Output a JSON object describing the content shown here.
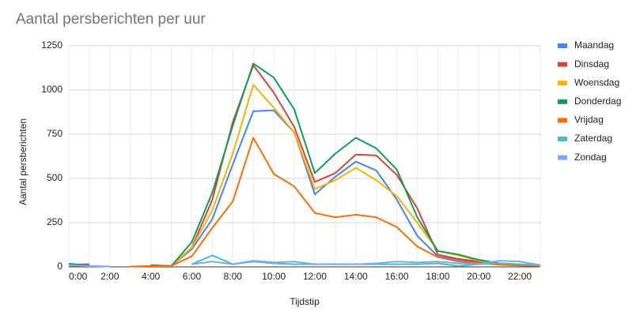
{
  "chart_data": {
    "type": "line",
    "title": "Aantal persberichten per uur",
    "x_label": "Tijdstip",
    "y_label": "Aantal persberichten",
    "categories": [
      "0:00",
      null,
      "2:00",
      null,
      "4:00",
      null,
      "6:00",
      null,
      "8:00",
      null,
      "10:00",
      null,
      "12:00",
      null,
      "14:00",
      null,
      "16:00",
      null,
      "18:00",
      null,
      "20:00",
      null,
      "22:00",
      null
    ],
    "ylim": [
      0,
      1250
    ],
    "yticks": [
      0,
      250,
      500,
      750,
      1000,
      {
        "value": 1250,
        "label": "1250"
      }
    ],
    "grid": true,
    "legend": "right",
    "series": [
      {
        "name": "Maandag",
        "color": "#4285f4",
        "values": [
          10,
          5,
          2,
          null,
          5,
          5,
          100,
          270,
          580,
          880,
          885,
          760,
          410,
          510,
          595,
          545,
          380,
          175,
          60,
          40,
          25,
          15,
          10,
          8
        ]
      },
      {
        "name": "Dinsdag",
        "color": "#db4437",
        "values": [
          12,
          15,
          null,
          null,
          5,
          5,
          110,
          380,
          820,
          1140,
          985,
          790,
          480,
          530,
          635,
          630,
          520,
          330,
          70,
          45,
          30,
          15,
          10,
          8
        ]
      },
      {
        "name": "Woensdag",
        "color": "#f4b400",
        "values": [
          10,
          5,
          null,
          null,
          5,
          5,
          110,
          320,
          640,
          1030,
          900,
          760,
          440,
          490,
          560,
          490,
          400,
          250,
          90,
          65,
          35,
          15,
          10,
          8
        ]
      },
      {
        "name": "Donderdag",
        "color": "#0f9d58",
        "values": [
          18,
          8,
          null,
          null,
          10,
          5,
          140,
          420,
          800,
          1150,
          1070,
          890,
          530,
          640,
          730,
          670,
          550,
          280,
          90,
          70,
          40,
          20,
          12,
          8
        ]
      },
      {
        "name": "Vrijdag",
        "color": "#ff6d01",
        "values": [
          8,
          5,
          null,
          2,
          5,
          5,
          60,
          220,
          370,
          730,
          525,
          455,
          305,
          280,
          295,
          280,
          225,
          115,
          55,
          30,
          20,
          12,
          8,
          5
        ]
      },
      {
        "name": "Zaterdag",
        "color": "#46bdc6",
        "values": [
          10,
          5,
          null,
          null,
          null,
          null,
          15,
          65,
          15,
          30,
          20,
          15,
          15,
          15,
          15,
          15,
          15,
          15,
          20,
          5,
          15,
          20,
          15,
          10
        ]
      },
      {
        "name": "Zondag",
        "color": "#7baaf7",
        "values": [
          8,
          5,
          2,
          null,
          null,
          null,
          15,
          30,
          15,
          35,
          25,
          30,
          15,
          15,
          15,
          20,
          30,
          25,
          30,
          20,
          15,
          35,
          30,
          10
        ]
      }
    ]
  }
}
